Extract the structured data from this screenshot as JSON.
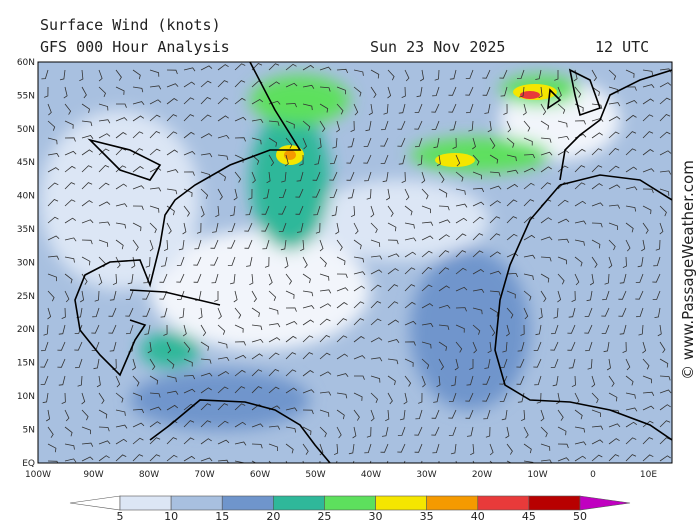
{
  "header": {
    "title": "Surface Wind (knots)",
    "model": "GFS 000 Hour Analysis",
    "date": "Sun 23 Nov 2025",
    "time": "12 UTC"
  },
  "lat_labels": [
    "60N",
    "55N",
    "50N",
    "45N",
    "40N",
    "35N",
    "30N",
    "25N",
    "20N",
    "15N",
    "10N",
    "5N",
    "EQ"
  ],
  "lon_labels": [
    "100W",
    "90W",
    "80W",
    "70W",
    "60W",
    "50W",
    "40W",
    "30W",
    "20W",
    "10W",
    "0",
    "10E"
  ],
  "colorbar": {
    "ticks": [
      5,
      10,
      15,
      20,
      25,
      30,
      35,
      40,
      45,
      50
    ],
    "colors": [
      "#ffffff",
      "#dce6f5",
      "#a8c0e0",
      "#6f95cc",
      "#2fb89a",
      "#5de05d",
      "#f5e600",
      "#f59a00",
      "#e83a3a",
      "#b80000",
      "#c000c0"
    ]
  },
  "credit": "© www.PassageWeather.com"
}
